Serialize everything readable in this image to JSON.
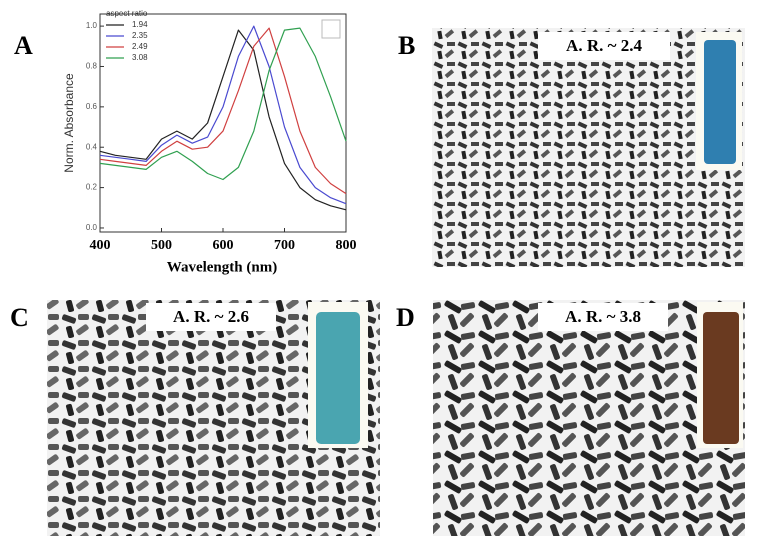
{
  "chart_data": {
    "type": "line",
    "xlabel": "Wavelength (nm)",
    "ylabel": "Norm. Absorbance",
    "legend_title": "aspect ratio",
    "x": [
      400,
      425,
      450,
      475,
      500,
      525,
      550,
      575,
      600,
      625,
      650,
      675,
      700,
      725,
      750,
      775,
      800
    ],
    "series": [
      {
        "name": "1.94",
        "color": "#222222",
        "values": [
          0.38,
          0.36,
          0.35,
          0.34,
          0.44,
          0.48,
          0.44,
          0.52,
          0.75,
          0.98,
          0.88,
          0.55,
          0.32,
          0.2,
          0.14,
          0.11,
          0.09
        ]
      },
      {
        "name": "2.35",
        "color": "#4a4ad0",
        "values": [
          0.36,
          0.35,
          0.34,
          0.33,
          0.41,
          0.46,
          0.42,
          0.45,
          0.6,
          0.85,
          1.0,
          0.8,
          0.5,
          0.3,
          0.2,
          0.15,
          0.12
        ]
      },
      {
        "name": "2.49",
        "color": "#d04040",
        "values": [
          0.34,
          0.33,
          0.32,
          0.31,
          0.38,
          0.43,
          0.39,
          0.4,
          0.48,
          0.68,
          0.9,
          0.99,
          0.75,
          0.48,
          0.3,
          0.22,
          0.17
        ]
      },
      {
        "name": "3.08",
        "color": "#30a050",
        "values": [
          0.32,
          0.31,
          0.3,
          0.29,
          0.35,
          0.38,
          0.33,
          0.27,
          0.24,
          0.3,
          0.48,
          0.78,
          0.98,
          0.99,
          0.85,
          0.65,
          0.43
        ]
      }
    ],
    "xlim": [
      400,
      800
    ],
    "xticks": [
      400,
      500,
      600,
      700,
      800
    ],
    "ylim": [
      -0.02,
      1.06
    ],
    "yticks": [
      {
        "value": 0,
        "label": "0.0"
      },
      0.2,
      0.4,
      0.6,
      0.8,
      {
        "value": 1,
        "label": "1.0"
      }
    ]
  },
  "panels": [
    {
      "label": "A"
    },
    {
      "label": "B",
      "annotation": "A. R.  ~ 2.4"
    },
    {
      "label": "C",
      "annotation": "A. R.  ~ 2.6"
    },
    {
      "label": "D",
      "annotation": "A. R.  ~ 3.8"
    }
  ]
}
